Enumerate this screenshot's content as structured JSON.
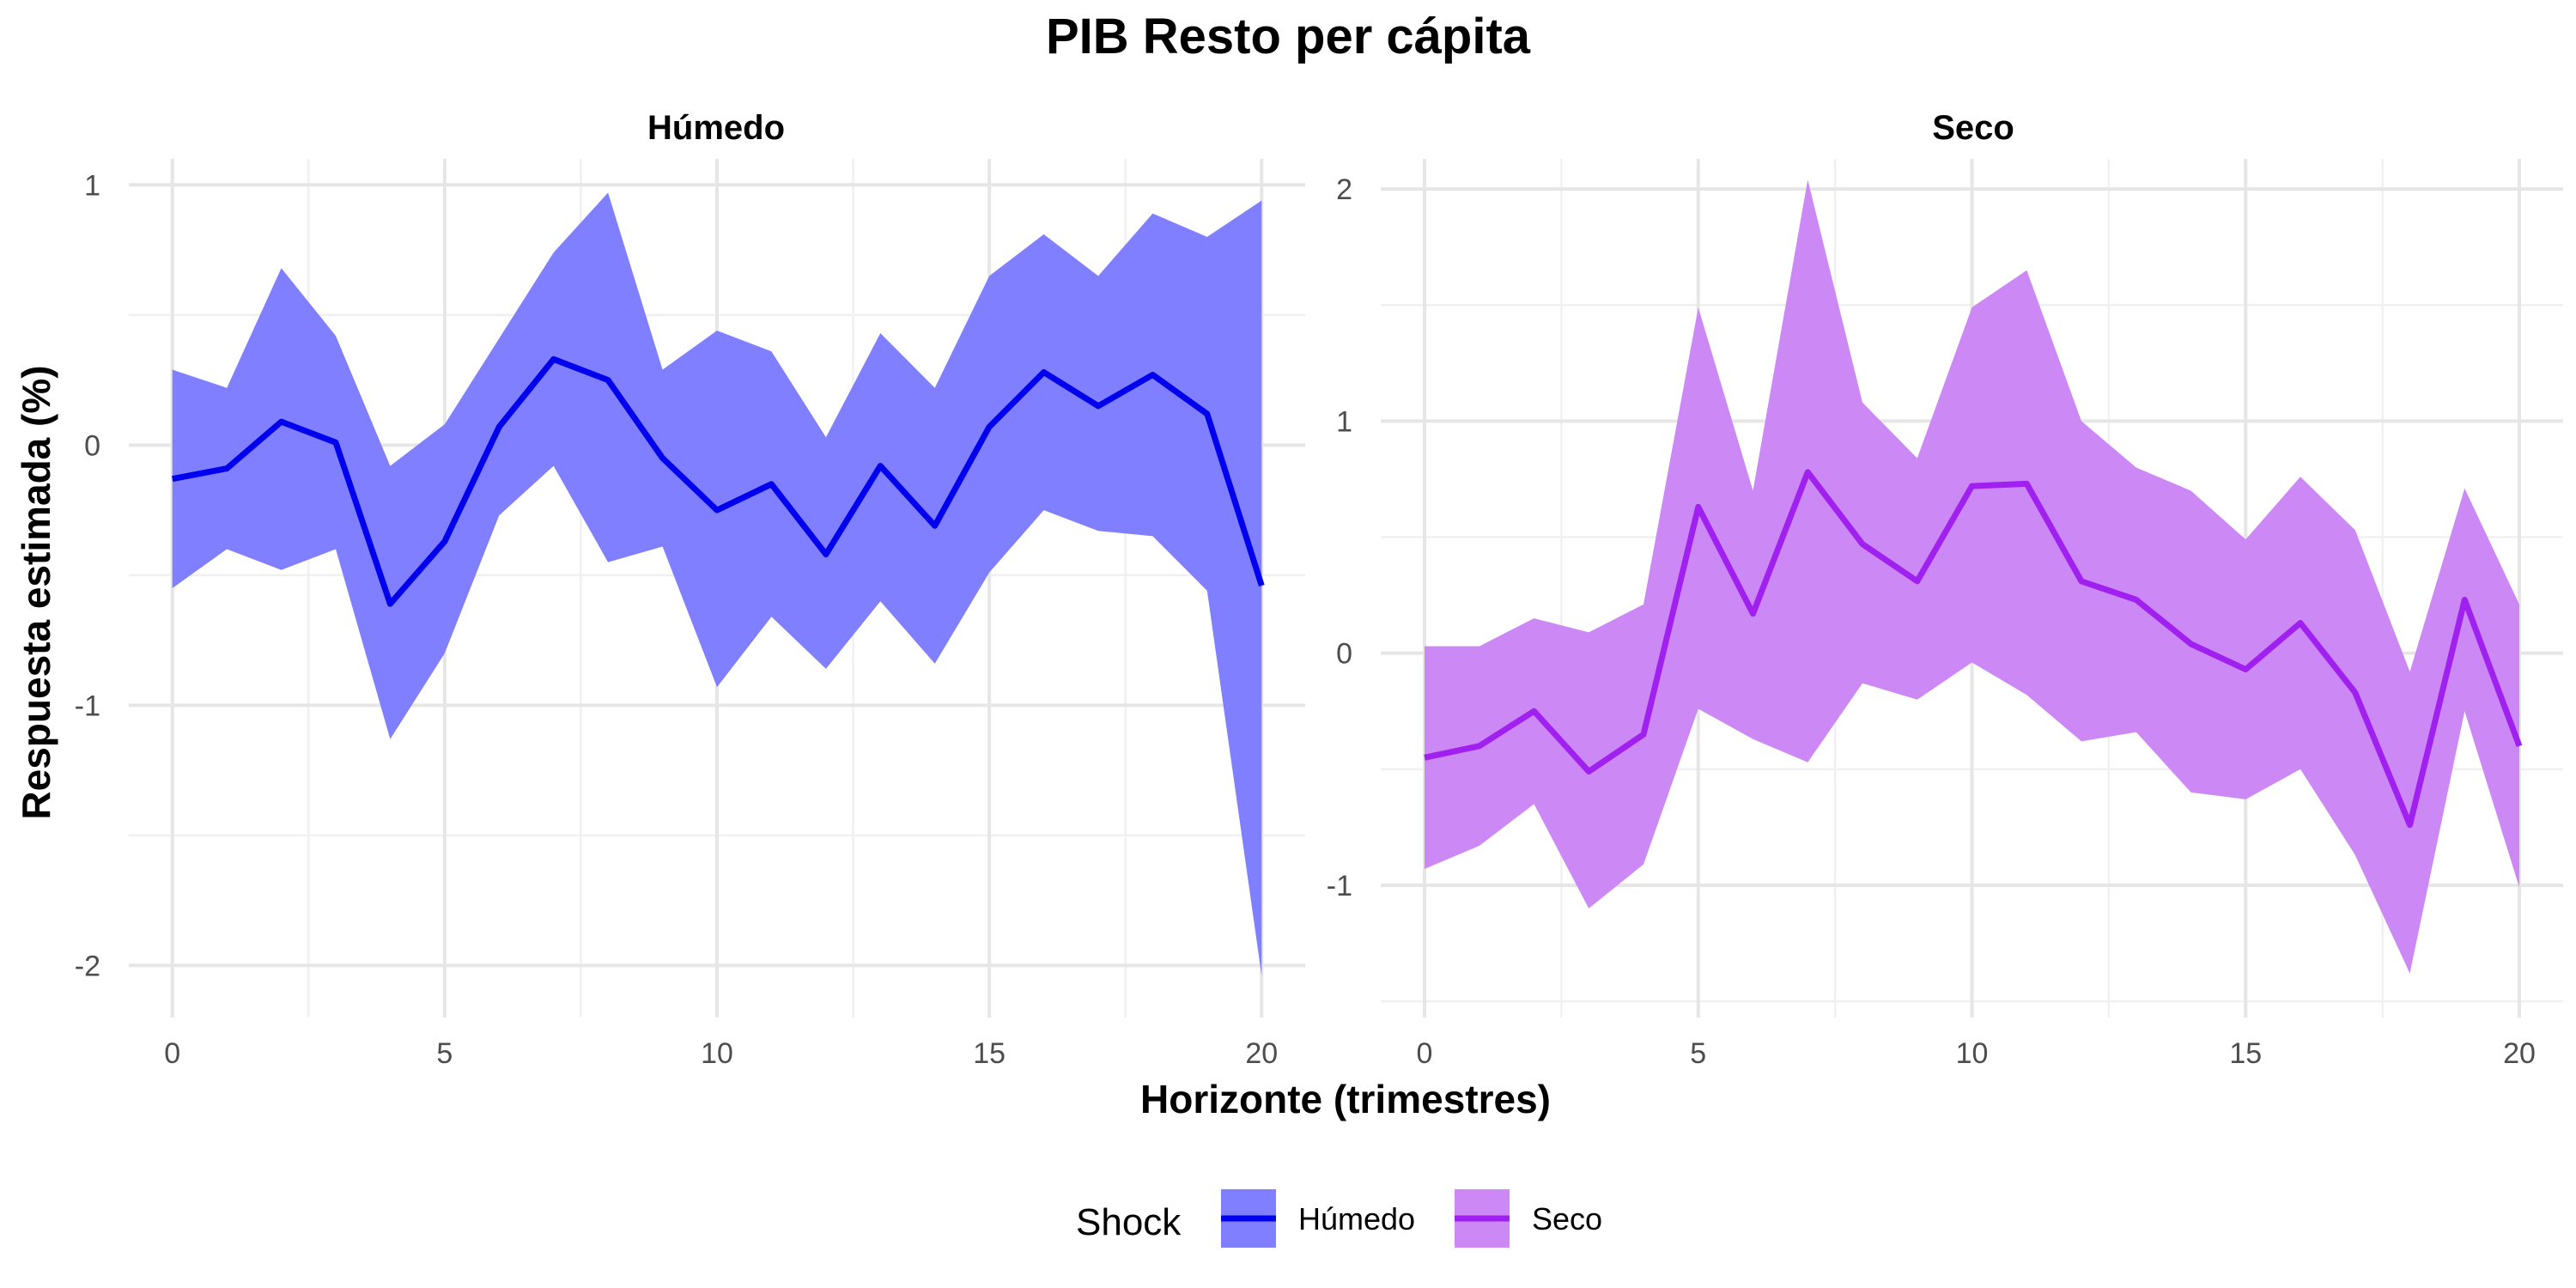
{
  "chart_data": {
    "type": "area",
    "title": "PIB Resto per cápita",
    "xlabel": "Horizonte (trimestres)",
    "ylabel": "Respuesta estimada (%)",
    "legend": {
      "title": "Shock",
      "placement": "bottom",
      "items": [
        {
          "label": "Húmedo",
          "line_color": "#0000EE",
          "fill_color": "#7F7FFF"
        },
        {
          "label": "Seco",
          "line_color": "#A020F0",
          "fill_color": "#CC88F4"
        }
      ]
    },
    "grid": true,
    "panels": [
      {
        "name": "Húmedo",
        "line_color": "#0000EE",
        "fill_color": "#7F7FFF",
        "xlim": [
          -0.8,
          20.8
        ],
        "ylim": [
          -2.2,
          1.1
        ],
        "xticks": [
          0,
          5,
          10,
          15,
          20
        ],
        "xtick_labels": [
          "0",
          "5",
          "10",
          "15",
          "20"
        ],
        "yticks": [
          -2,
          -1,
          0,
          1
        ],
        "ytick_labels": [
          "-2",
          "-1",
          "0",
          "1"
        ],
        "x": [
          0,
          1,
          2,
          3,
          4,
          5,
          6,
          7,
          8,
          9,
          10,
          11,
          12,
          13,
          14,
          15,
          16,
          17,
          18,
          19,
          20
        ],
        "estimate": [
          -0.13,
          -0.09,
          0.09,
          0.01,
          -0.61,
          -0.37,
          0.07,
          0.33,
          0.25,
          -0.05,
          -0.25,
          -0.15,
          -0.42,
          -0.08,
          -0.31,
          0.07,
          0.28,
          0.15,
          0.27,
          0.12,
          -0.54
        ],
        "upper": [
          0.29,
          0.22,
          0.68,
          0.42,
          -0.08,
          0.08,
          0.41,
          0.74,
          0.97,
          0.29,
          0.44,
          0.36,
          0.03,
          0.43,
          0.22,
          0.65,
          0.81,
          0.65,
          0.89,
          0.8,
          0.94
        ],
        "lower": [
          -0.55,
          -0.4,
          -0.48,
          -0.4,
          -1.13,
          -0.8,
          -0.27,
          -0.08,
          -0.45,
          -0.39,
          -0.93,
          -0.66,
          -0.86,
          -0.6,
          -0.84,
          -0.49,
          -0.25,
          -0.33,
          -0.35,
          -0.56,
          -2.04
        ]
      },
      {
        "name": "Seco",
        "line_color": "#A020F0",
        "fill_color": "#CC88F4",
        "xlim": [
          -0.8,
          20.8
        ],
        "ylim": [
          -1.57,
          2.13
        ],
        "xticks": [
          0,
          5,
          10,
          15,
          20
        ],
        "xtick_labels": [
          "0",
          "5",
          "10",
          "15",
          "20"
        ],
        "yticks": [
          -1,
          0,
          1,
          2
        ],
        "ytick_labels": [
          "-1",
          "0",
          "1",
          "2"
        ],
        "x": [
          0,
          1,
          2,
          3,
          4,
          5,
          6,
          7,
          8,
          9,
          10,
          11,
          12,
          13,
          14,
          15,
          16,
          17,
          18,
          19,
          20
        ],
        "estimate": [
          -0.45,
          -0.4,
          -0.25,
          -0.51,
          -0.35,
          0.63,
          0.17,
          0.78,
          0.47,
          0.31,
          0.72,
          0.73,
          0.31,
          0.23,
          0.04,
          -0.07,
          0.13,
          -0.17,
          -0.74,
          0.23,
          -0.4
        ],
        "upper": [
          0.03,
          0.03,
          0.15,
          0.09,
          0.21,
          1.49,
          0.7,
          2.04,
          1.08,
          0.84,
          1.49,
          1.65,
          1.0,
          0.8,
          0.7,
          0.49,
          0.76,
          0.53,
          -0.08,
          0.71,
          0.21
        ],
        "lower": [
          -0.93,
          -0.83,
          -0.65,
          -1.1,
          -0.91,
          -0.24,
          -0.37,
          -0.47,
          -0.13,
          -0.2,
          -0.04,
          -0.18,
          -0.38,
          -0.34,
          -0.6,
          -0.63,
          -0.5,
          -0.87,
          -1.38,
          -0.25,
          -1.01
        ]
      }
    ]
  }
}
